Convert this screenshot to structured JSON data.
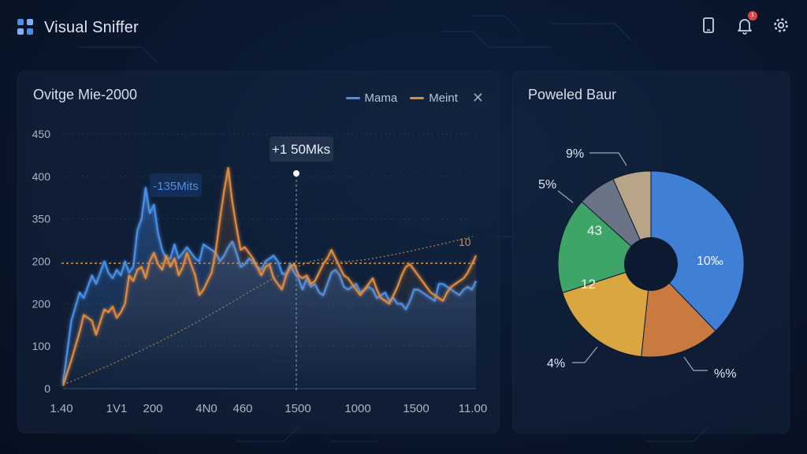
{
  "app": {
    "title": "Visual Sniffer"
  },
  "header": {
    "icons": [
      "phone-icon",
      "bell-icon",
      "gear-icon"
    ],
    "notification_count": "1"
  },
  "line_panel": {
    "title": "Ovitge Mie-2000",
    "legend": [
      {
        "label": "Mama",
        "color": "#4a8fe6"
      },
      {
        "label": "Meint",
        "color": "#e08a3c"
      }
    ],
    "tooltip_peak": "+1 50Mks",
    "tooltip_left": "-135Mits",
    "ref_label": "10"
  },
  "pie_panel": {
    "title": "Poweled Baur",
    "labels": {
      "l9": "9%",
      "l5": "5%",
      "l43": "43",
      "l12": "12",
      "l10": "10‰",
      "l4": "4%",
      "lpp": "%%"
    }
  },
  "chart_data": [
    {
      "type": "line",
      "title": "Ovitge Mie-2000",
      "y_ticks": [
        "450",
        "400",
        "350",
        "200",
        "200",
        "100",
        "0"
      ],
      "x_ticks": [
        "1.40",
        "1V1",
        "200",
        "4N0",
        "460",
        "1500",
        "1000",
        "1500",
        "11.00"
      ],
      "ylim": [
        0,
        450
      ],
      "xlim": [
        0,
        100
      ],
      "series": [
        {
          "name": "Mama",
          "color": "#4a8fe6",
          "x": [
            0,
            2,
            4,
            5,
            7,
            8,
            10,
            11,
            12,
            13,
            14,
            15,
            16,
            17,
            18,
            19,
            20,
            21,
            22,
            23,
            24,
            25,
            26,
            27,
            28,
            29,
            30,
            31,
            32,
            33,
            34,
            35,
            36,
            37,
            38,
            39,
            40,
            41,
            42,
            43,
            44,
            45,
            46,
            47,
            48,
            49,
            50,
            51,
            52,
            53,
            54,
            55,
            56,
            57,
            58,
            59,
            60,
            61,
            62,
            63,
            64,
            65,
            66,
            67,
            68,
            69,
            70,
            71,
            72,
            73,
            74,
            75,
            76,
            77,
            78,
            79,
            80,
            81,
            82,
            83,
            84,
            85,
            86,
            87,
            88,
            89,
            90,
            91,
            92,
            93,
            94,
            95,
            96,
            97,
            98,
            99,
            100
          ],
          "y": [
            10,
            120,
            170,
            160,
            200,
            185,
            225,
            205,
            195,
            210,
            200,
            225,
            205,
            215,
            280,
            300,
            355,
            310,
            325,
            275,
            245,
            230,
            230,
            255,
            230,
            240,
            250,
            240,
            230,
            225,
            255,
            250,
            245,
            240,
            225,
            235,
            250,
            260,
            240,
            215,
            220,
            230,
            225,
            215,
            210,
            225,
            230,
            235,
            225,
            205,
            200,
            220,
            205,
            195,
            175,
            195,
            180,
            185,
            170,
            165,
            185,
            205,
            210,
            200,
            180,
            175,
            180,
            185,
            170,
            175,
            180,
            175,
            160,
            165,
            170,
            155,
            160,
            150,
            150,
            140,
            155,
            175,
            175,
            170,
            165,
            160,
            155,
            185,
            185,
            180,
            175,
            170,
            165,
            175,
            180,
            175,
            190
          ]
        },
        {
          "name": "Meint",
          "color": "#e08a3c",
          "x": [
            0,
            2,
            4,
            5,
            7,
            8,
            10,
            11,
            12,
            13,
            14,
            15,
            16,
            17,
            18,
            19,
            20,
            21,
            22,
            23,
            24,
            25,
            26,
            27,
            28,
            29,
            30,
            31,
            32,
            33,
            34,
            35,
            36,
            37,
            38,
            39,
            40,
            41,
            42,
            43,
            44,
            45,
            46,
            47,
            48,
            49,
            50,
            51,
            52,
            53,
            54,
            55,
            56,
            57,
            58,
            59,
            60,
            61,
            62,
            63,
            64,
            65,
            66,
            67,
            68,
            69,
            70,
            71,
            72,
            73,
            74,
            75,
            76,
            77,
            78,
            79,
            80,
            81,
            82,
            83,
            84,
            85,
            86,
            87,
            88,
            89,
            90,
            91,
            92,
            93,
            94,
            95,
            96,
            97,
            98,
            99,
            100
          ],
          "y": [
            5,
            50,
            100,
            130,
            120,
            95,
            140,
            135,
            145,
            125,
            135,
            150,
            200,
            190,
            210,
            215,
            195,
            225,
            240,
            220,
            210,
            235,
            215,
            230,
            200,
            215,
            240,
            220,
            200,
            165,
            175,
            190,
            205,
            245,
            300,
            350,
            390,
            330,
            285,
            245,
            250,
            240,
            230,
            215,
            200,
            215,
            220,
            195,
            185,
            175,
            200,
            215,
            220,
            200,
            195,
            200,
            185,
            190,
            205,
            220,
            230,
            245,
            230,
            215,
            200,
            195,
            185,
            175,
            165,
            175,
            185,
            195,
            175,
            160,
            155,
            150,
            165,
            180,
            200,
            215,
            220,
            210,
            200,
            190,
            180,
            170,
            165,
            160,
            155,
            170,
            180,
            185,
            190,
            195,
            205,
            220,
            235
          ]
        }
      ],
      "annotations": [
        "+1 50Mks",
        "-135Mits",
        "10"
      ]
    },
    {
      "type": "pie",
      "title": "Poweled Baur",
      "slices": [
        {
          "label": "10‰",
          "value": 34.0,
          "color": "#3f7fd6"
        },
        {
          "label": "%%",
          "value": 12.5,
          "color": "#c97a3e"
        },
        {
          "label": "12",
          "value": 16.5,
          "color": "#d9a640"
        },
        {
          "label": "43",
          "value": 15.0,
          "color": "#3fa468"
        },
        {
          "label": "5%",
          "value": 6.0,
          "color": "#6b7487"
        },
        {
          "label": "9%",
          "value": 6.0,
          "color": "#b8a487"
        }
      ]
    }
  ]
}
